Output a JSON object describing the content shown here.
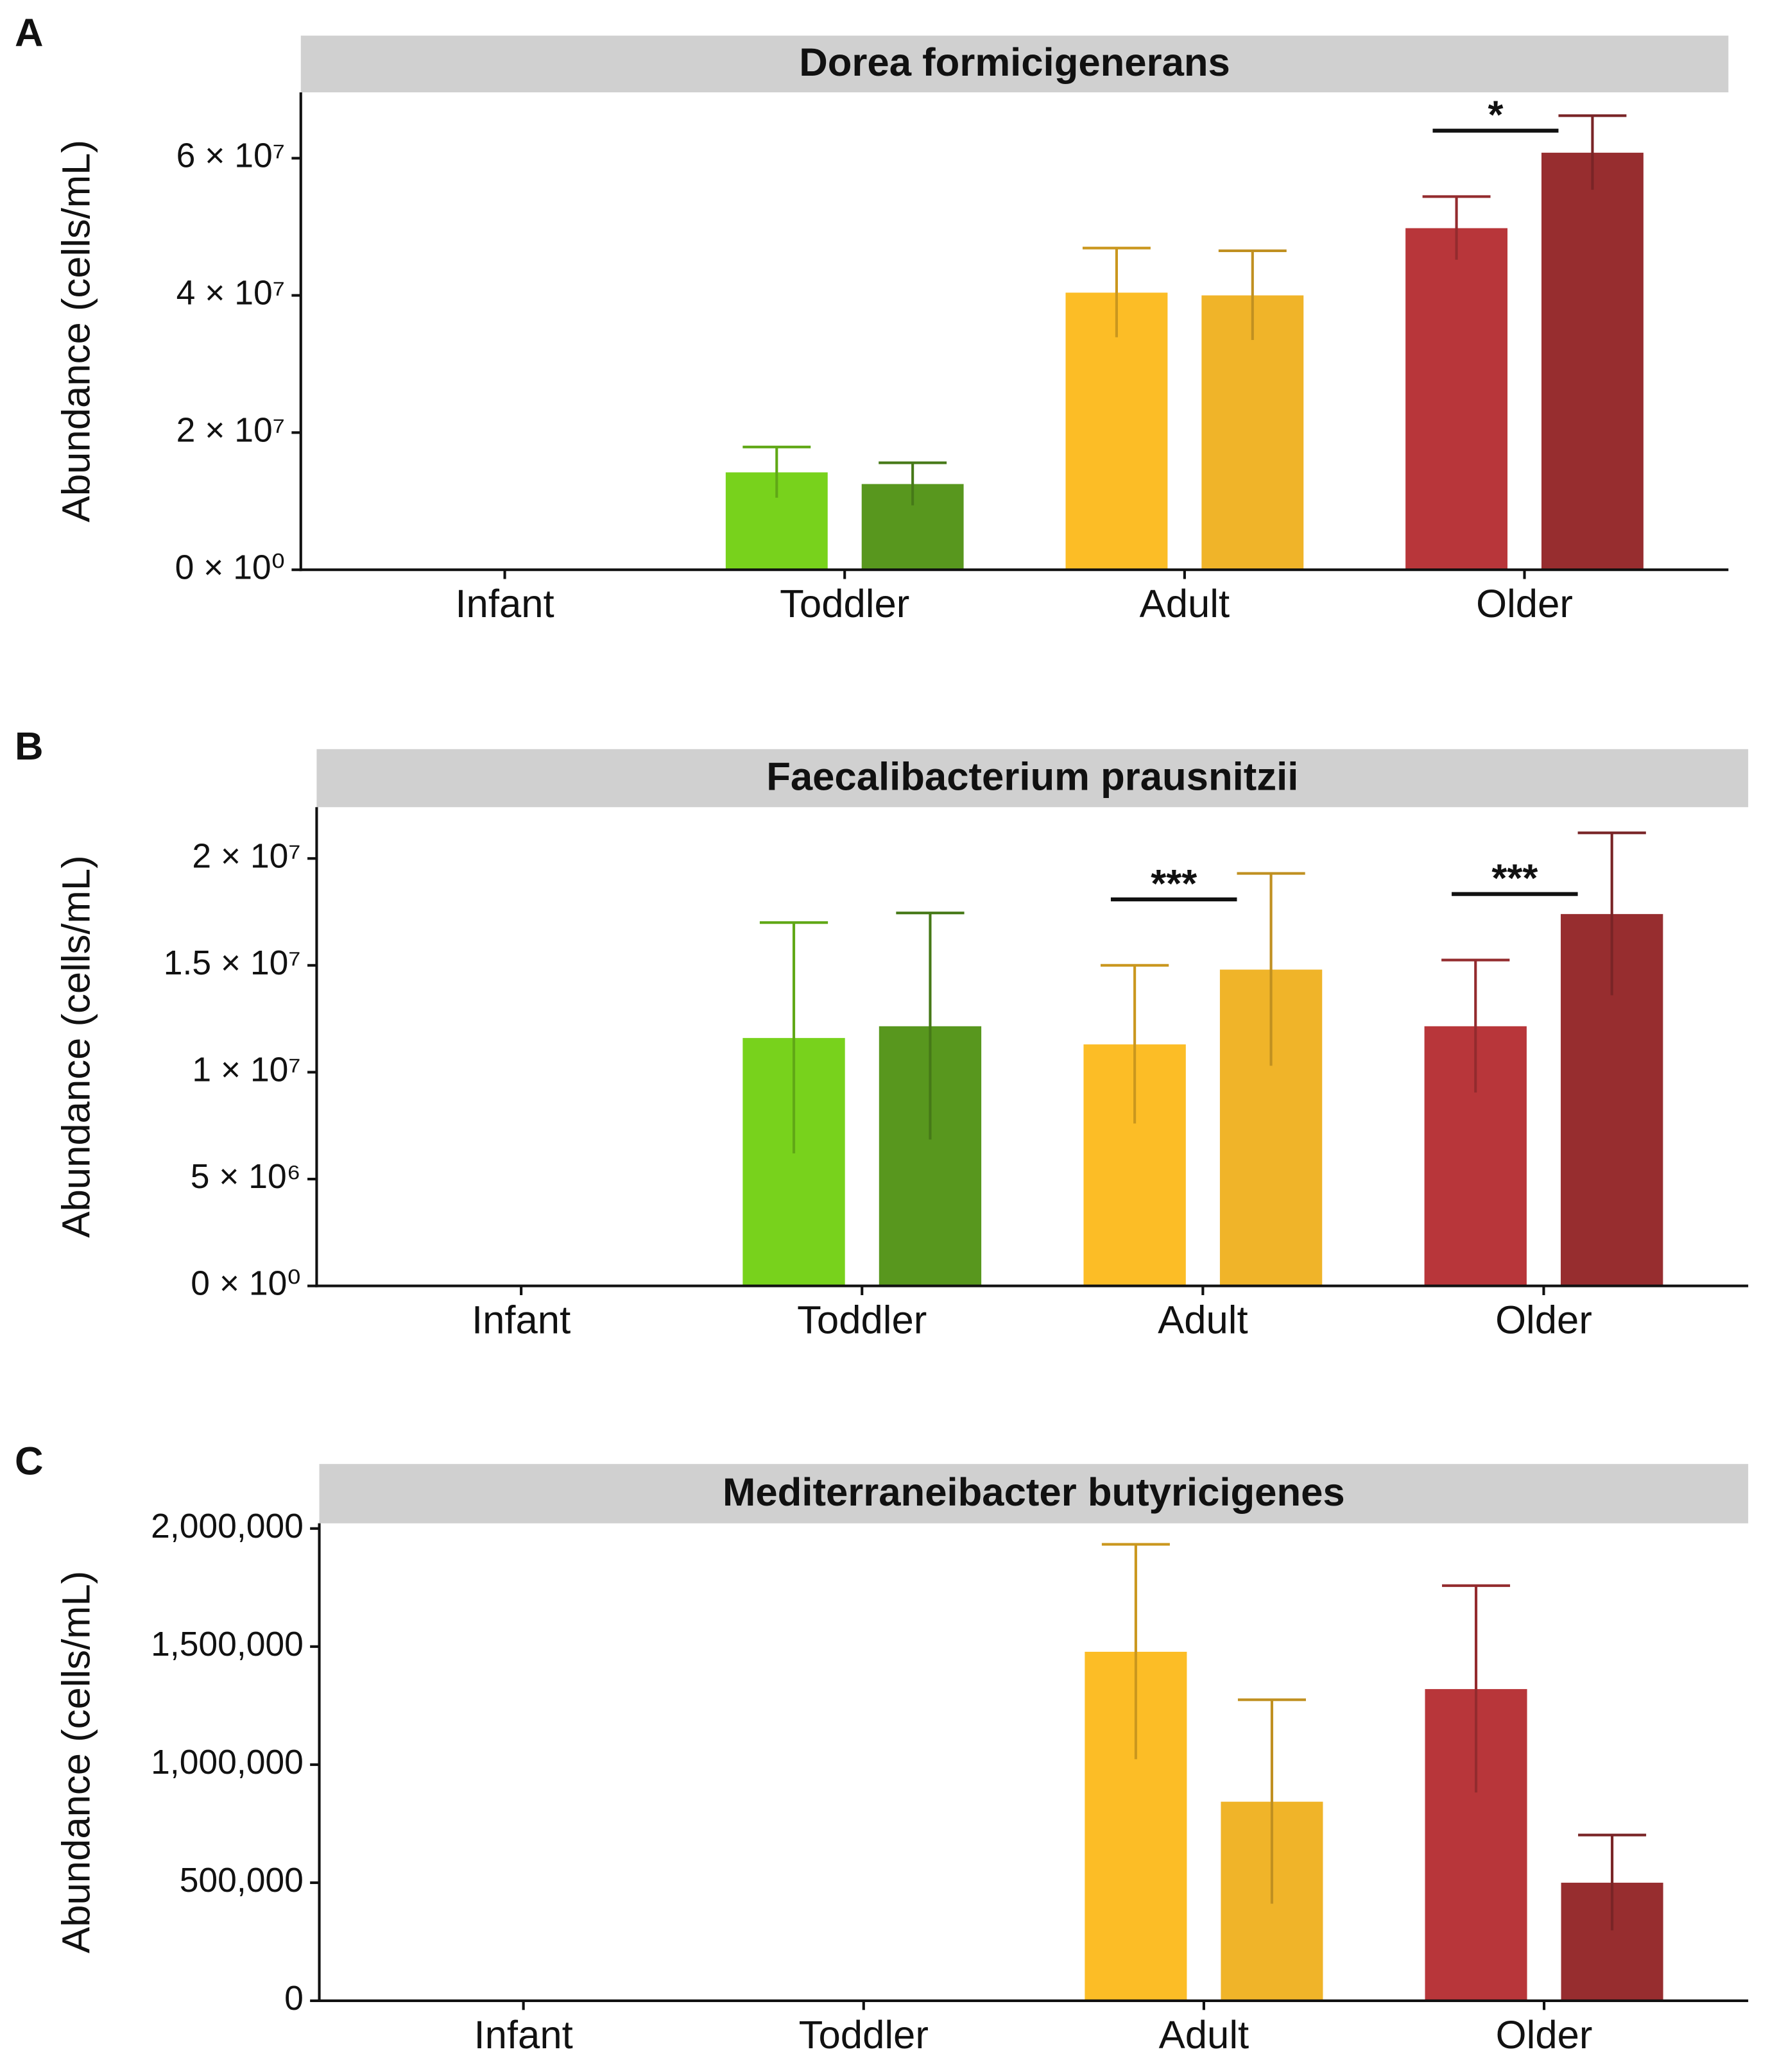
{
  "chart_data": [
    {
      "type": "bar",
      "label": "A",
      "title": "Dorea formicigenerans",
      "y_label": "Abundance (cells/mL)",
      "categories": [
        "Infant",
        "Toddler",
        "Adult",
        "Older"
      ],
      "series": [
        {
          "values": [
            null,
            14200000,
            40400000,
            49800000
          ],
          "errors": [
            null,
            3700000,
            6500000,
            4600000
          ],
          "colors": [
            null,
            "#78d21c",
            "#fcbd26",
            "#b8363a"
          ]
        },
        {
          "values": [
            null,
            12500000,
            40000000,
            60800000
          ],
          "errors": [
            null,
            3100000,
            6500000,
            5400000
          ],
          "colors": [
            null,
            "#58971e",
            "#f0b429",
            "#972d2f"
          ]
        }
      ],
      "ylim": [
        0,
        69600000
      ],
      "yticks": [
        {
          "value": 0,
          "label": "0 × 10⁰"
        },
        {
          "value": 20000000,
          "label": "2 × 10⁷"
        },
        {
          "value": 40000000,
          "label": "4 × 10⁷"
        },
        {
          "value": 60000000,
          "label": "6 × 10⁷"
        }
      ],
      "annotations": [
        {
          "category": "Older",
          "text": "*"
        }
      ]
    },
    {
      "type": "bar",
      "label": "B",
      "title": "Faecalibacterium prausnitzii",
      "y_label": "Abundance (cells/mL)",
      "categories": [
        "Infant",
        "Toddler",
        "Adult",
        "Older"
      ],
      "series": [
        {
          "values": [
            null,
            11600000,
            11300000,
            12150000
          ],
          "errors": [
            null,
            5400000,
            3700000,
            3100000
          ],
          "colors": [
            null,
            "#78d21c",
            "#fcbd26",
            "#b8363a"
          ]
        },
        {
          "values": [
            null,
            12150000,
            14800000,
            17400000
          ],
          "errors": [
            null,
            5300000,
            4500000,
            3800000
          ],
          "colors": [
            null,
            "#58971e",
            "#f0b429",
            "#972d2f"
          ]
        }
      ],
      "ylim": [
        0,
        22400000
      ],
      "yticks": [
        {
          "value": 0,
          "label": "0 × 10⁰"
        },
        {
          "value": 5000000,
          "label": "5 × 10⁶"
        },
        {
          "value": 10000000,
          "label": "1 × 10⁷"
        },
        {
          "value": 15000000,
          "label": "1.5 × 10⁷"
        },
        {
          "value": 20000000,
          "label": "2 × 10⁷"
        }
      ],
      "annotations": [
        {
          "category": "Adult",
          "text": "***"
        },
        {
          "category": "Older",
          "text": "***"
        }
      ]
    },
    {
      "type": "bar",
      "label": "C",
      "title": "Mediterraneibacter butyricigenes",
      "y_label": "Abundance (cells/mL)",
      "categories": [
        "Infant",
        "Toddler",
        "Adult",
        "Older"
      ],
      "series": [
        {
          "values": [
            null,
            null,
            1478000,
            1320000
          ],
          "errors": [
            null,
            null,
            455000,
            438000
          ],
          "colors": [
            null,
            null,
            "#fcbd26",
            "#b8363a"
          ]
        },
        {
          "values": [
            null,
            null,
            843000,
            500000
          ],
          "errors": [
            null,
            null,
            432000,
            202000
          ],
          "colors": [
            null,
            null,
            "#f0b429",
            "#972d2f"
          ]
        }
      ],
      "ylim": [
        0,
        2022000
      ],
      "yticks": [
        0,
        {
          "value": 500000,
          "label": "500,000"
        },
        {
          "value": 1000000,
          "label": "1,000,000"
        },
        {
          "value": 1500000,
          "label": "1,500,000"
        },
        {
          "value": 2000000,
          "label": "2,000,000"
        }
      ],
      "annotations": []
    }
  ]
}
